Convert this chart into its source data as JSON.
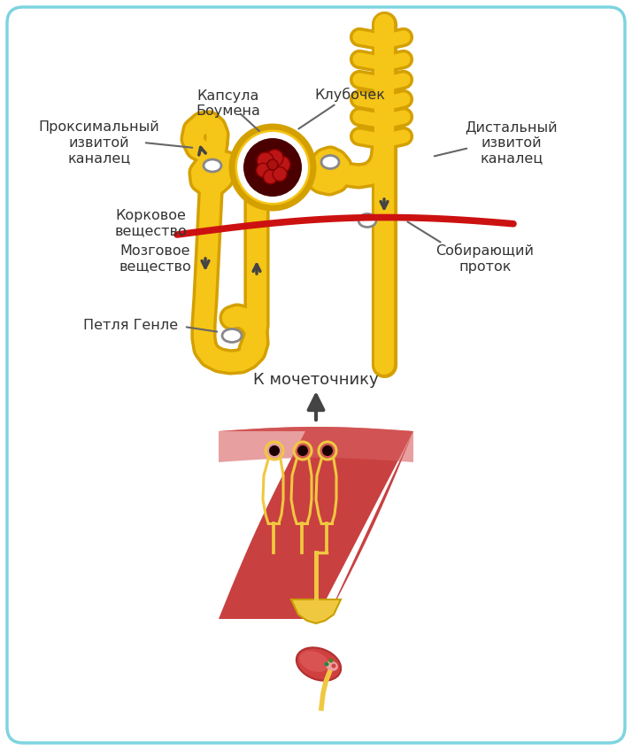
{
  "bg_color": "#ffffff",
  "border_color": "#7dd4e0",
  "tubule_color": "#f5c518",
  "tubule_edge": "#d4a000",
  "glom_dark": "#4a0000",
  "glom_red": "#cc2222",
  "red_line": "#cc1111",
  "arrow_color": "#444444",
  "text_color": "#333333",
  "pyramid_color": "#c94040",
  "pyramid_light": "#d86060",
  "pelvis_color": "#f0c840",
  "neph_color": "#f0c840",
  "kidney_color": "#c94040",
  "labels": {
    "capsula": "Капсула\nБоумена",
    "glomerulus": "Клубочек",
    "proximal": "Проксимальный\nизвитой\nканалец",
    "distal": "Дистальный\nизвитой\nканалец",
    "cortex": "Корковое\nвещество",
    "medulla": "Мозговое\nвещество",
    "henle": "Петля Генле",
    "collecting": "Собирающий\nпроток",
    "ureter": "К мочеточнику"
  }
}
